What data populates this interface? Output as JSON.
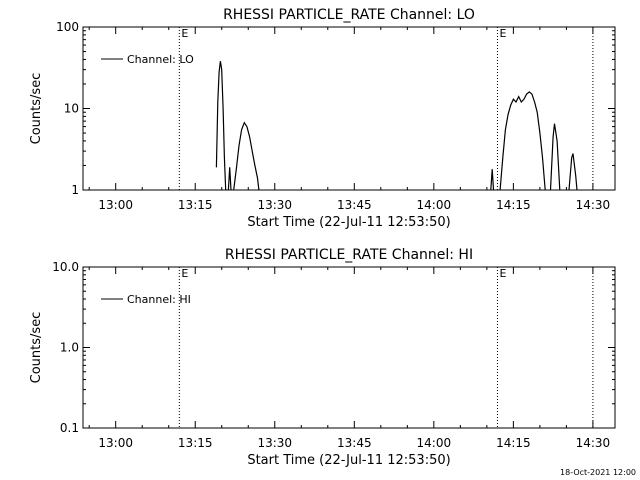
{
  "footer": {
    "date_stamp": "18-Oct-2021 12:00"
  },
  "chart_data": [
    {
      "type": "line",
      "title": "RHESSI PARTICLE_RATE Channel: LO",
      "xlabel": "Start Time (22-Jul-11 12:53:50)",
      "ylabel": "Counts/sec",
      "yscale": "log",
      "xlim": [
        "12:53:50",
        "14:34:10"
      ],
      "ylim": [
        1,
        100
      ],
      "x_ticks": [
        "13:00",
        "13:15",
        "13:30",
        "13:45",
        "14:00",
        "14:15",
        "14:30"
      ],
      "y_ticks": [
        "1",
        "10",
        "100"
      ],
      "legend": {
        "label": "Channel: LO",
        "position": "top-left"
      },
      "grid": false,
      "markers": [
        {
          "time": "13:12:00",
          "label": "E",
          "style": "dotted"
        },
        {
          "time": "14:12:00",
          "label": "E",
          "style": "dotted"
        },
        {
          "time": "14:30:00",
          "label": "",
          "style": "dotted"
        }
      ],
      "series": [
        {
          "name": "Channel: LO",
          "segments": [
            [
              [
                "13:19:00",
                1.9
              ],
              [
                "13:19:15",
                12
              ],
              [
                "13:19:30",
                28
              ],
              [
                "13:19:45",
                38
              ],
              [
                "13:20:00",
                30
              ],
              [
                "13:20:15",
                10
              ],
              [
                "13:20:30",
                2.5
              ],
              [
                "13:20:45",
                1.0
              ]
            ],
            [
              [
                "13:21:15",
                1.0
              ],
              [
                "13:21:30",
                1.9
              ],
              [
                "13:21:45",
                1.0
              ]
            ],
            [
              [
                "13:22:15",
                1.0
              ],
              [
                "13:22:45",
                1.8
              ],
              [
                "13:23:15",
                3.5
              ],
              [
                "13:23:45",
                5.5
              ],
              [
                "13:24:15",
                6.7
              ],
              [
                "13:24:45",
                6.0
              ],
              [
                "13:25:15",
                4.5
              ],
              [
                "13:25:45",
                3.0
              ],
              [
                "13:26:15",
                2.0
              ],
              [
                "13:26:45",
                1.4
              ],
              [
                "13:27:00",
                1.0
              ]
            ],
            [
              [
                "14:10:45",
                1.0
              ],
              [
                "14:11:00",
                1.8
              ],
              [
                "14:11:15",
                1.0
              ]
            ],
            [
              [
                "14:12:30",
                1.0
              ],
              [
                "14:13:00",
                2.5
              ],
              [
                "14:13:30",
                5.5
              ],
              [
                "14:14:00",
                8.5
              ],
              [
                "14:14:30",
                11
              ],
              [
                "14:15:00",
                13
              ],
              [
                "14:15:30",
                12
              ],
              [
                "14:16:00",
                14
              ],
              [
                "14:16:30",
                12
              ],
              [
                "14:17:00",
                13
              ],
              [
                "14:17:30",
                15
              ],
              [
                "14:18:00",
                16
              ],
              [
                "14:18:30",
                15
              ],
              [
                "14:19:00",
                12
              ],
              [
                "14:19:30",
                9
              ],
              [
                "14:20:00",
                5
              ],
              [
                "14:20:30",
                2.5
              ],
              [
                "14:21:00",
                1.0
              ]
            ],
            [
              [
                "14:22:00",
                1.0
              ],
              [
                "14:22:30",
                4.5
              ],
              [
                "14:22:45",
                6.5
              ],
              [
                "14:23:15",
                4.0
              ],
              [
                "14:23:45",
                1.0
              ]
            ],
            [
              [
                "14:25:30",
                1.0
              ],
              [
                "14:26:00",
                2.5
              ],
              [
                "14:26:15",
                2.8
              ],
              [
                "14:26:45",
                1.5
              ],
              [
                "14:27:00",
                1.0
              ]
            ]
          ]
        }
      ]
    },
    {
      "type": "line",
      "title": "RHESSI PARTICLE_RATE Channel: HI",
      "xlabel": "Start Time (22-Jul-11 12:53:50)",
      "ylabel": "Counts/sec",
      "yscale": "log",
      "xlim": [
        "12:53:50",
        "14:34:10"
      ],
      "ylim": [
        0.1,
        10
      ],
      "x_ticks": [
        "13:00",
        "13:15",
        "13:30",
        "13:45",
        "14:00",
        "14:15",
        "14:30"
      ],
      "y_ticks": [
        "0.1",
        "1.0",
        "10.0"
      ],
      "legend": {
        "label": "Channel: HI",
        "position": "top-left"
      },
      "grid": false,
      "markers": [
        {
          "time": "13:12:00",
          "label": "E",
          "style": "dotted"
        },
        {
          "time": "14:12:00",
          "label": "E",
          "style": "dotted"
        },
        {
          "time": "14:30:00",
          "label": "",
          "style": "dotted"
        }
      ],
      "series": [
        {
          "name": "Channel: HI",
          "segments": []
        }
      ]
    }
  ]
}
